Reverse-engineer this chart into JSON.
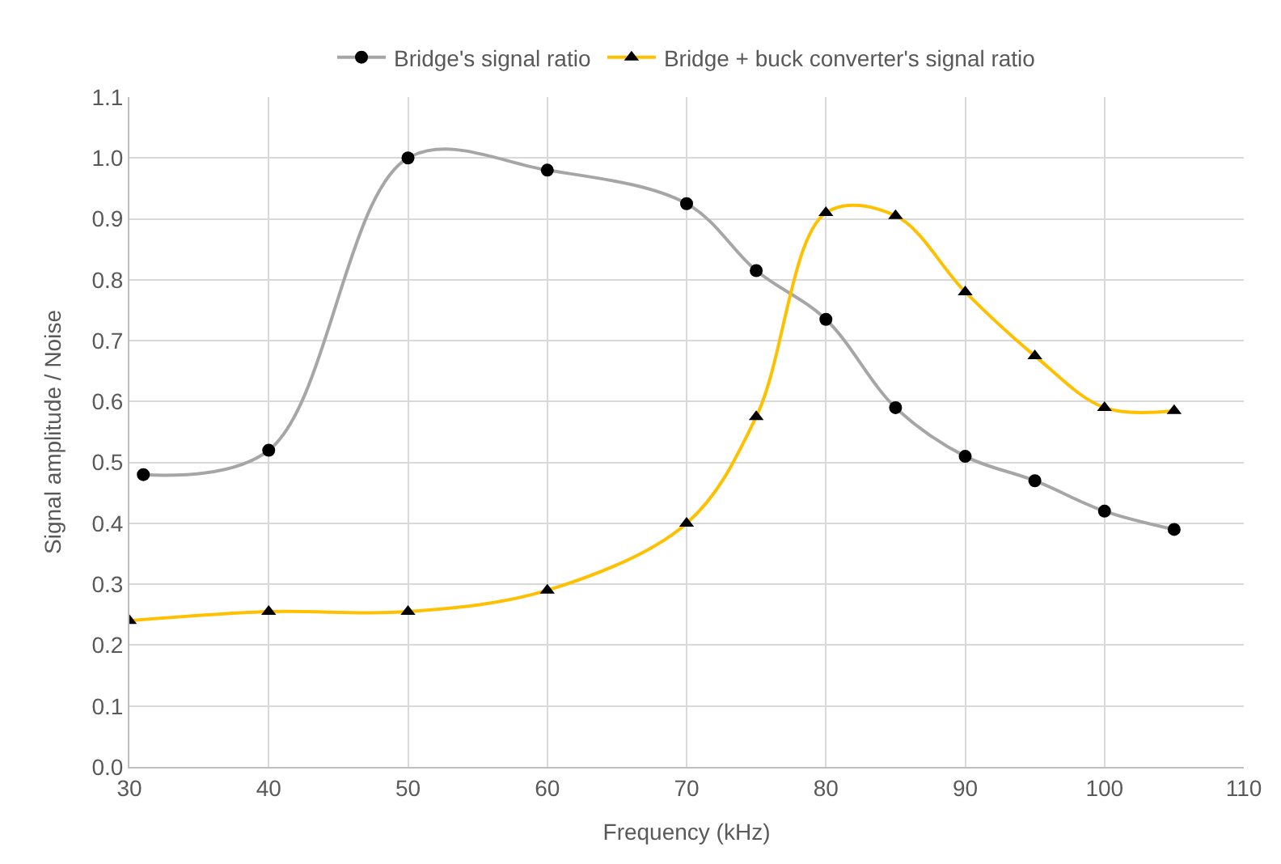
{
  "chart_data": {
    "type": "line",
    "xlabel": "Frequency (kHz)",
    "ylabel": "Signal amplitude / Noise",
    "xlim": [
      30,
      110
    ],
    "xticks": [
      30,
      40,
      50,
      60,
      70,
      80,
      90,
      100,
      110
    ],
    "ylim": [
      0,
      1.1
    ],
    "yticks": [
      {
        "value": 0,
        "label": "0.0"
      },
      0.1,
      0.2,
      0.3,
      0.4,
      0.5,
      0.6,
      0.7,
      0.8,
      0.9,
      {
        "value": 1,
        "label": "1.0"
      },
      1.1
    ],
    "grid": true,
    "legend": "top",
    "series": [
      {
        "name": "Bridge's signal ratio",
        "color": "#a6a6a6",
        "marker": "circle",
        "x": [
          31,
          40,
          50,
          60,
          70,
          75,
          80,
          85,
          90,
          95,
          100,
          105
        ],
        "values": [
          0.48,
          0.52,
          1.0,
          0.98,
          0.925,
          0.815,
          0.735,
          0.59,
          0.51,
          0.47,
          0.42,
          0.39
        ]
      },
      {
        "name": "Bridge + buck converter's signal ratio",
        "color": "#ffc000",
        "marker": "triangle",
        "x": [
          30,
          40,
          50,
          60,
          70,
          75,
          80,
          85,
          90,
          95,
          100,
          105
        ],
        "values": [
          0.24,
          0.255,
          0.255,
          0.29,
          0.4,
          0.575,
          0.91,
          0.905,
          0.78,
          0.675,
          0.59,
          0.585
        ]
      }
    ]
  }
}
